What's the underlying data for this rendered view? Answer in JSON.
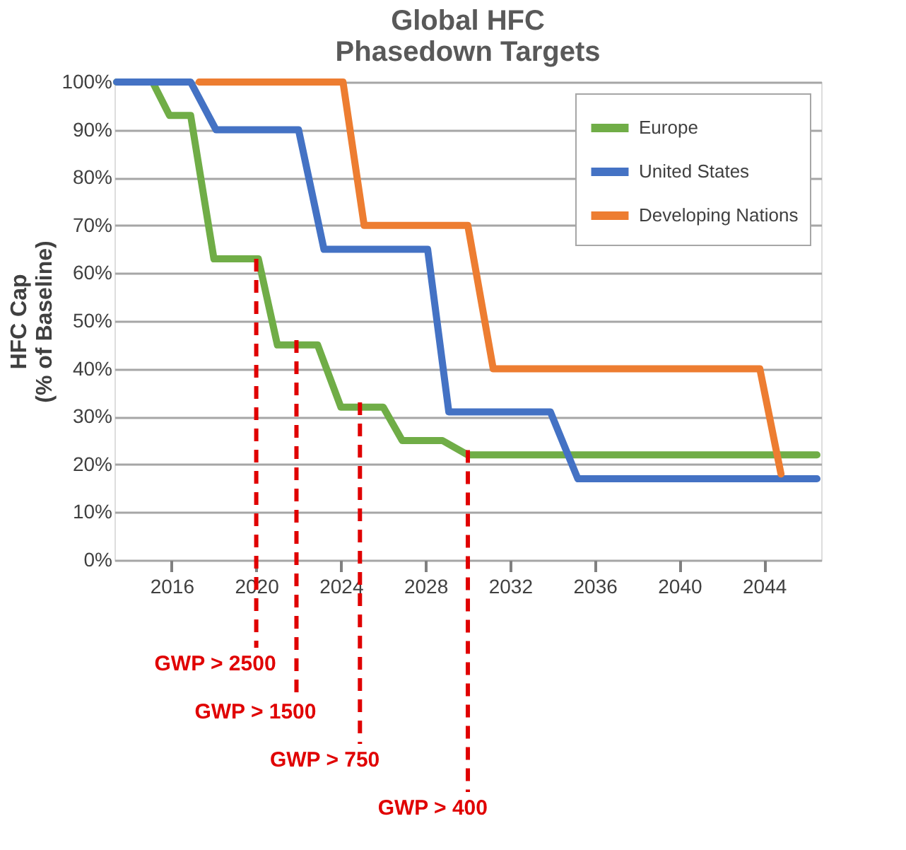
{
  "chart_data": {
    "type": "line",
    "title": "Global HFC\nPhasedown Targets",
    "ylabel": "HFC Cap\n(% of Baseline)",
    "series": [
      {
        "name": "Europe",
        "color": "#70ad47",
        "x": [
          2013.4,
          2015.1,
          2015.9,
          2016.9,
          2018,
          2020.1,
          2021,
          2022.9,
          2024,
          2026,
          2026.9,
          2028.8,
          2030,
          2046.5
        ],
        "values": [
          100,
          100,
          93,
          93,
          63,
          63,
          45,
          45,
          32,
          32,
          25,
          25,
          22,
          22
        ]
      },
      {
        "name": "United States",
        "color": "#4472c4",
        "x": [
          2013.4,
          2016.9,
          2018.1,
          2022,
          2023.2,
          2028.1,
          2029.1,
          2033.9,
          2035.2,
          2046.5
        ],
        "values": [
          100,
          100,
          90,
          90,
          65,
          65,
          31,
          31,
          17,
          17
        ]
      },
      {
        "name": "Developing Nations",
        "color": "#ed7d31",
        "x": [
          2017.3,
          2024.1,
          2025.1,
          2030,
          2031.2,
          2043.8,
          2044.8
        ],
        "values": [
          100,
          100,
          70,
          70,
          40,
          40,
          18
        ]
      }
    ],
    "xlim": [
      2013.3,
      2046.7
    ],
    "xticks": [
      2016,
      2020,
      2024,
      2028,
      2032,
      2036,
      2040,
      2044
    ],
    "ylim": [
      0,
      100
    ],
    "yticks": [
      {
        "value": 0,
        "label": "0%"
      },
      {
        "value": 10,
        "label": "10%"
      },
      {
        "value": 20,
        "label": "20%"
      },
      {
        "value": 30,
        "label": "30%"
      },
      {
        "value": 40,
        "label": "40%"
      },
      {
        "value": 50,
        "label": "50%"
      },
      {
        "value": 60,
        "label": "60%"
      },
      {
        "value": 70,
        "label": "70%"
      },
      {
        "value": 80,
        "label": "80%"
      },
      {
        "value": 90,
        "label": "90%"
      },
      {
        "value": 100,
        "label": "100%"
      }
    ],
    "grid": "y",
    "legend": "top right",
    "marker": "none",
    "line_style": "solid",
    "annotations": [
      {
        "text": "GWP > 2500",
        "x": 2020,
        "y": 63
      },
      {
        "text": "GWP > 1500",
        "x": 2021.9,
        "y": 46
      },
      {
        "text": "GWP > 750",
        "x": 2024.9,
        "y": 33
      },
      {
        "text": "GWP > 400",
        "x": 2030,
        "y": 23
      }
    ]
  }
}
